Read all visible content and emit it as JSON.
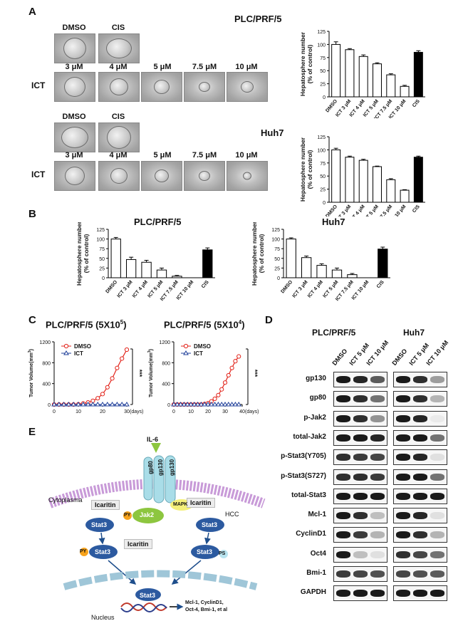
{
  "panels": {
    "A": "A",
    "B": "B",
    "C": "C",
    "D": "D",
    "E": "E"
  },
  "panel_a": {
    "plc_title": "PLC/PRF/5",
    "huh7_title": "Huh7",
    "control_labels": [
      "DMSO",
      "CIS"
    ],
    "dose_labels": [
      "3 μM",
      "4 μM",
      "5 μM",
      "7.5 μM",
      "10 μM"
    ],
    "row_label": "ICT"
  },
  "bar_axis": {
    "ylabel1": "Hepatosphere number",
    "ylabel2": "(% of control)",
    "categories": [
      "DMSO",
      "ICT 3 μM",
      "ICT 4 μM",
      "ICT 5 μM",
      "ICT 7.5 μM",
      "ICT 10 μM",
      "CIS"
    ]
  },
  "panel_b": {
    "plc_title": "PLC/PRF/5",
    "huh7_title": "Huh7"
  },
  "panel_c": {
    "left_title": "PLC/PRF/5 (5X10",
    "left_exp": "5",
    "right_title": "PLC/PRF/5 (5X10",
    "right_exp": "4",
    "close_paren": ")",
    "legend_dmso": "DMSO",
    "legend_ict": "ICT",
    "ylabel_left": "Tumor Volume(mm",
    "ylabel_right": "Tumor Volume(mm",
    "unit_exp": "3",
    "xunit": "(days)",
    "sig": "***"
  },
  "panel_d": {
    "plc_title": "PLC/PRF/5",
    "huh7_title": "Huh7",
    "columns": [
      "DMSO",
      "ICT 5 μM",
      "ICT 10 μM"
    ],
    "rows": [
      "gp130",
      "gp80",
      "p-Jak2",
      "total-Jak2",
      "p-Stat3(Y705)",
      "p-Stat3(S727)",
      "total-Stat3",
      "Mcl-1",
      "CyclinD1",
      "Oct4",
      "Bmi-1",
      "GAPDH"
    ],
    "plc_intensity": [
      [
        1,
        0.95,
        0.7
      ],
      [
        1,
        0.9,
        0.6
      ],
      [
        1,
        0.9,
        0.45
      ],
      [
        1,
        1,
        0.95
      ],
      [
        0.9,
        0.85,
        0.8
      ],
      [
        0.9,
        0.9,
        0.85
      ],
      [
        1,
        1,
        1
      ],
      [
        1,
        0.9,
        0.25
      ],
      [
        1,
        0.85,
        0.3
      ],
      [
        1,
        0.25,
        0.1
      ],
      [
        0.85,
        0.8,
        0.75
      ],
      [
        1,
        1,
        1
      ]
    ],
    "huh7_intensity": [
      [
        1,
        0.9,
        0.4
      ],
      [
        1,
        0.9,
        0.3
      ],
      [
        1,
        0.95,
        0.05
      ],
      [
        1,
        1,
        0.6
      ],
      [
        1,
        0.95,
        0.1
      ],
      [
        1,
        1,
        0.6
      ],
      [
        1,
        1,
        1
      ],
      [
        1,
        0.95,
        0.1
      ],
      [
        1,
        0.9,
        0.3
      ],
      [
        0.9,
        0.8,
        0.6
      ],
      [
        0.8,
        0.75,
        0.7
      ],
      [
        1,
        1,
        1
      ]
    ]
  },
  "panel_e": {
    "il6": "IL-6",
    "gp80": "gp80",
    "gp130": "gp130",
    "cytoplasma": "Cytoplasma",
    "icaritin": "Icaritin",
    "jak2": "Jak2",
    "py": "PY",
    "ps": "PS",
    "stat3": "Stat3",
    "mapk": "MAPK",
    "hcc": "HCC",
    "nucleus": "Nucleus",
    "targets_line1": "Mcl-1, CyclinD1,",
    "targets_line2": "Oct-4, Bmi-1, et al"
  },
  "chart_data": [
    {
      "type": "bar",
      "title": "PLC/PRF/5",
      "ylabel": "Hepatosphere number (% of control)",
      "categories": [
        "DMSO",
        "ICT 3 μM",
        "ICT 4 μM",
        "ICT 5 μM",
        "ICT 7.5 μM",
        "ICT 10 μM",
        "CIS"
      ],
      "values": [
        100,
        90,
        77,
        63,
        42,
        20,
        85
      ],
      "errors": [
        5,
        2,
        3,
        2,
        2,
        2,
        3
      ],
      "ylim": [
        0,
        125
      ],
      "yticks": [
        0,
        25,
        50,
        75,
        100,
        125
      ]
    },
    {
      "type": "bar",
      "title": "Huh7",
      "ylabel": "Hepatosphere number (% of control)",
      "categories": [
        "DMSO",
        "ICT 3 μM",
        "ICT 4 μM",
        "ICT 5 μM",
        "ICT 7.5 μM",
        "ICT 10 μM",
        "CIS"
      ],
      "values": [
        100,
        86,
        80,
        68,
        43,
        23,
        86
      ],
      "errors": [
        3,
        2,
        2,
        1,
        2,
        1,
        2
      ],
      "ylim": [
        0,
        125
      ],
      "yticks": [
        0,
        25,
        50,
        75,
        100,
        125
      ]
    },
    {
      "type": "bar",
      "title": "PLC/PRF/5",
      "ylabel": "Hepatosphere number (% of control)",
      "categories": [
        "DMSO",
        "ICT 3 μM",
        "ICT 4 μM",
        "ICT 5 μM",
        "ICT 7.5 μM",
        "ICT 10 μM",
        "CIS"
      ],
      "values": [
        100,
        47,
        40,
        20,
        4,
        0,
        72
      ],
      "errors": [
        4,
        6,
        5,
        5,
        2,
        0,
        5
      ],
      "ylim": [
        0,
        125
      ],
      "yticks": [
        0,
        25,
        50,
        75,
        100,
        125
      ]
    },
    {
      "type": "bar",
      "title": "Huh7",
      "ylabel": "Hepatosphere number (% of control)",
      "categories": [
        "DMSO",
        "ICT 3 μM",
        "ICT 4 μM",
        "ICT 5 μM",
        "ICT 7.5 μM",
        "ICT 10 μM",
        "CIS"
      ],
      "values": [
        100,
        52,
        32,
        20,
        8,
        0,
        74
      ],
      "errors": [
        3,
        4,
        4,
        5,
        3,
        0,
        5
      ],
      "ylim": [
        0,
        125
      ],
      "yticks": [
        0,
        25,
        50,
        75,
        100,
        125
      ]
    },
    {
      "type": "line",
      "title": "PLC/PRF/5 (5X10^5)",
      "xlabel": "(days)",
      "ylabel": "Tumor Volume(mm^3)",
      "xlim": [
        0,
        30
      ],
      "ylim": [
        0,
        1200
      ],
      "xticks": [
        0,
        10,
        20,
        30
      ],
      "yticks": [
        0,
        400,
        800,
        1200
      ],
      "series": [
        {
          "name": "DMSO",
          "x": [
            0,
            2,
            4,
            6,
            8,
            10,
            12,
            14,
            16,
            18,
            20,
            22,
            24,
            26,
            28,
            30
          ],
          "y": [
            0,
            0,
            0,
            0,
            0,
            5,
            20,
            40,
            70,
            120,
            200,
            330,
            500,
            700,
            880,
            1050
          ]
        },
        {
          "name": "ICT",
          "x": [
            0,
            2,
            4,
            6,
            8,
            10,
            12,
            14,
            16,
            18,
            20,
            22,
            24,
            26,
            28,
            30
          ],
          "y": [
            0,
            0,
            0,
            0,
            0,
            0,
            0,
            0,
            0,
            0,
            0,
            0,
            0,
            0,
            0,
            0
          ]
        }
      ]
    },
    {
      "type": "line",
      "title": "PLC/PRF/5 (5X10^4)",
      "xlabel": "(days)",
      "ylabel": "Tumor Volume(mm^3)",
      "xlim": [
        0,
        40
      ],
      "ylim": [
        0,
        1200
      ],
      "xticks": [
        0,
        10,
        20,
        30,
        40
      ],
      "yticks": [
        0,
        400,
        800,
        1200
      ],
      "series": [
        {
          "name": "DMSO",
          "x": [
            0,
            2,
            4,
            6,
            8,
            10,
            12,
            14,
            16,
            18,
            20,
            22,
            24,
            26,
            28,
            30,
            32,
            34,
            36,
            38
          ],
          "y": [
            0,
            0,
            0,
            0,
            0,
            0,
            0,
            0,
            0,
            10,
            25,
            60,
            110,
            180,
            290,
            420,
            560,
            700,
            830,
            920
          ]
        },
        {
          "name": "ICT",
          "x": [
            0,
            2,
            4,
            6,
            8,
            10,
            12,
            14,
            16,
            18,
            20,
            22,
            24,
            26,
            28,
            30,
            32,
            34,
            36,
            38
          ],
          "y": [
            0,
            0,
            0,
            0,
            0,
            0,
            0,
            0,
            0,
            0,
            0,
            0,
            0,
            0,
            0,
            0,
            0,
            0,
            0,
            0
          ]
        }
      ]
    }
  ]
}
